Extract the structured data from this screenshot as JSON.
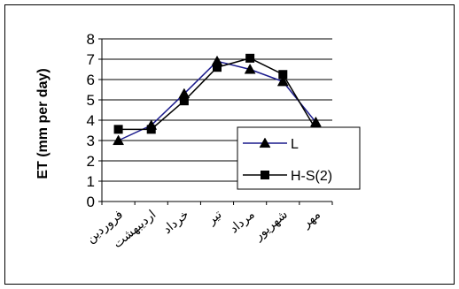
{
  "chart_data": {
    "type": "line",
    "title": "",
    "xlabel": "",
    "ylabel": "ET (mm per day)",
    "ylim": [
      0,
      8
    ],
    "yticks": [
      "0",
      "1",
      "2",
      "3",
      "4",
      "5",
      "6",
      "7",
      "8"
    ],
    "categories": [
      "فروردین",
      "اردیبهشت",
      "خرداد",
      "تیر",
      "مرداد",
      "شهریور",
      "مهر"
    ],
    "grid": "horizontal",
    "legend_position": "bottom-right",
    "series": [
      {
        "name": "L",
        "marker": "triangle",
        "color": "#1a1a8c",
        "values": [
          3.0,
          3.75,
          5.3,
          6.9,
          6.5,
          5.9,
          3.9
        ]
      },
      {
        "name": "H-S(2)",
        "marker": "square",
        "color": "#000000",
        "values": [
          3.55,
          3.55,
          4.95,
          6.6,
          7.05,
          6.25,
          3.55
        ]
      }
    ]
  }
}
